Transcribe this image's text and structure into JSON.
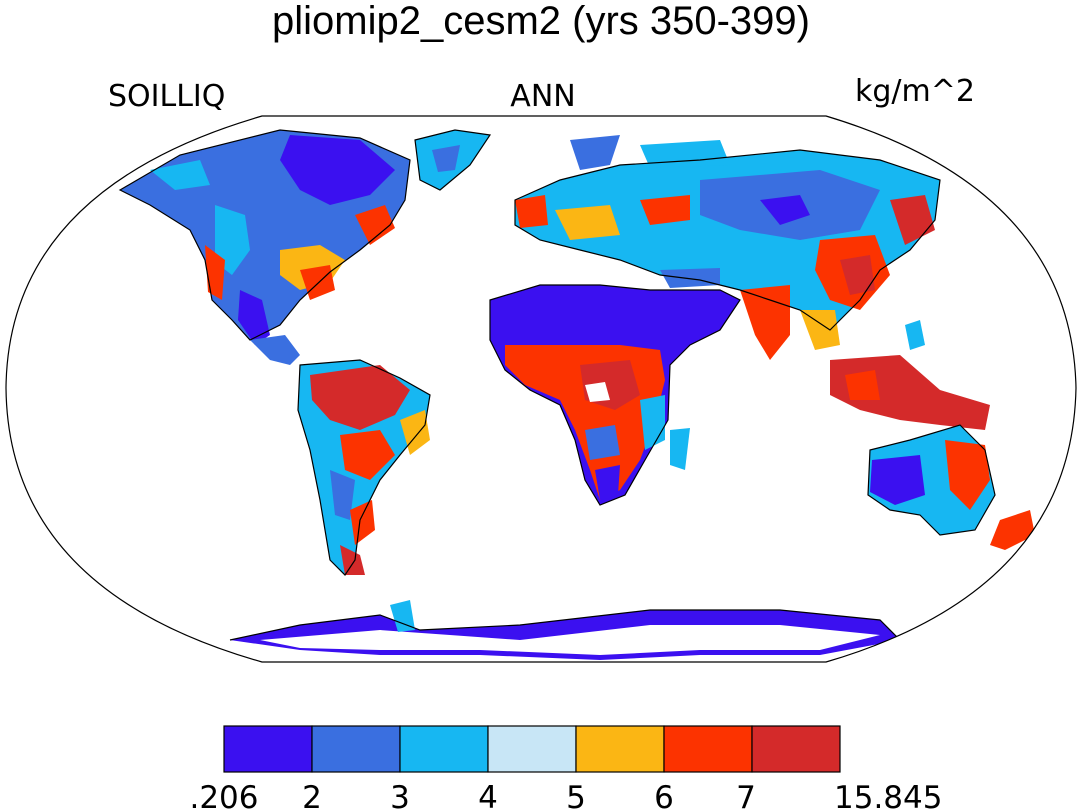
{
  "title": "pliomip2_cesm2 (yrs 350-399)",
  "left_label": "SOILLIQ",
  "center_label": "ANN",
  "right_label": "kg/m^2",
  "colorbar": {
    "colors": [
      "#3b10f0",
      "#3a6fe0",
      "#17b7f2",
      "#c8e6f6",
      "#fbb614",
      "#fc3300",
      "#d42a2a"
    ],
    "tick_labels": [
      ".206",
      "2",
      "3",
      "4",
      "5",
      "6",
      "7",
      "15.845"
    ],
    "bounds": [
      0.206,
      2,
      3,
      4,
      5,
      6,
      7,
      15.845
    ]
  },
  "land_mask_color": "#ffffff",
  "coastline_color": "#000000"
}
